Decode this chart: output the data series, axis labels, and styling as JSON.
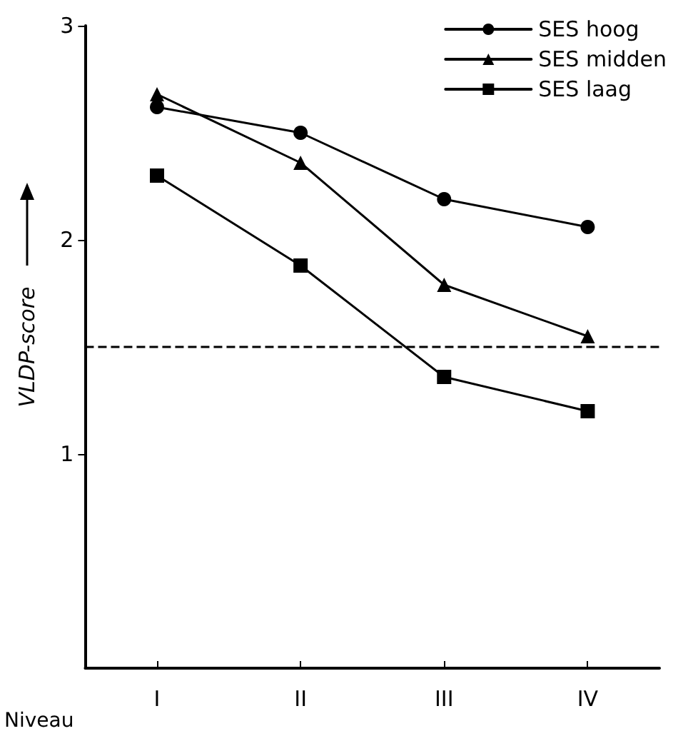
{
  "chart_data": {
    "type": "line",
    "xlabel": "Niveau",
    "ylabel": "VLDP-score",
    "categories": [
      "I",
      "II",
      "III",
      "IV"
    ],
    "series": [
      {
        "name": "SES hoog",
        "color": "#000000",
        "marker": "circle",
        "values": [
          2.62,
          2.5,
          2.19,
          2.06
        ]
      },
      {
        "name": "SES midden",
        "color": "#000000",
        "marker": "triangle",
        "values": [
          2.68,
          2.36,
          1.79,
          1.55
        ]
      },
      {
        "name": "SES laag",
        "color": "#000000",
        "marker": "square",
        "values": [
          2.3,
          1.88,
          1.36,
          1.2
        ]
      }
    ],
    "ylim": [
      0,
      3
    ],
    "yticks": [
      1,
      2,
      3
    ],
    "ref_lines": [
      {
        "axis": "y",
        "value": 1.5,
        "line_style": "dashed",
        "color": "#000000"
      }
    ],
    "grid": false,
    "legend": "top right",
    "line_style": "solid"
  }
}
